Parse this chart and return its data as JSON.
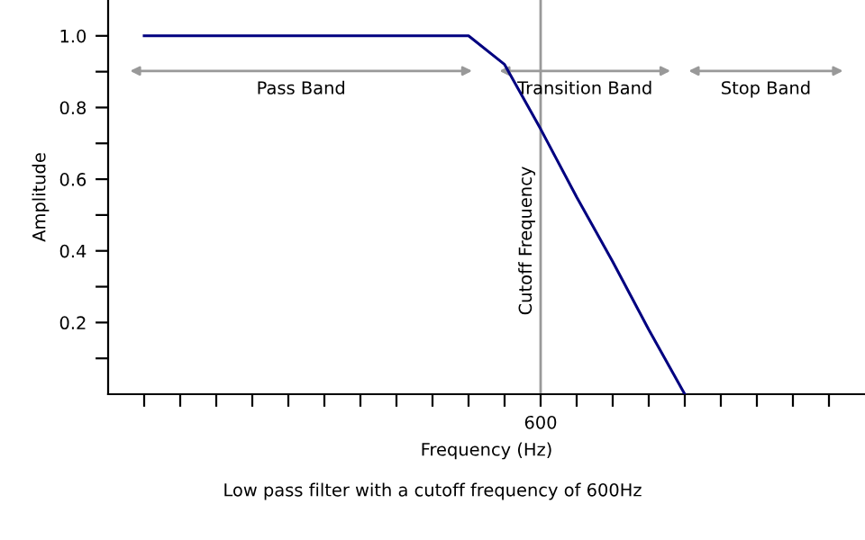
{
  "chart_data": {
    "type": "line",
    "xlabel": "Frequency (Hz)",
    "ylabel": "Amplitude",
    "categories": [
      null,
      null,
      null,
      null,
      null,
      null,
      null,
      null,
      null,
      null,
      null,
      "600",
      null,
      null,
      null,
      null,
      null,
      null,
      null,
      null
    ],
    "series": [
      {
        "color": "#000080",
        "values": [
          1.0,
          1.0,
          1.0,
          1.0,
          1.0,
          1.0,
          1.0,
          1.0,
          1.0,
          1.0,
          0.92,
          0.74,
          0.55,
          0.37,
          0.18,
          0.0,
          null,
          null,
          null,
          null
        ]
      }
    ],
    "ylim": [
      0,
      1.1
    ],
    "yticks": [
      {
        "value": 0.1,
        "label": null
      },
      {
        "value": 0.2,
        "label": "0.2"
      },
      {
        "value": 0.3,
        "label": null
      },
      {
        "value": 0.4,
        "label": "0.4"
      },
      {
        "value": 0.5,
        "label": null
      },
      {
        "value": 0.6,
        "label": "0.6"
      },
      {
        "value": 0.7,
        "label": null
      },
      {
        "value": 0.8,
        "label": "0.8"
      },
      {
        "value": 0.9,
        "label": null
      },
      {
        "value": 1.0,
        "label": "1.0"
      }
    ],
    "ref_lines": [
      {
        "axis": "x",
        "value": "600",
        "label": "Cutoff Frequency",
        "color": "#999999"
      }
    ],
    "annotations": [
      "Pass Band",
      "Transition Band",
      "Stop Band",
      "Low pass filter with a cutoff frequency of 600Hz"
    ],
    "grid": false,
    "legend": false
  }
}
